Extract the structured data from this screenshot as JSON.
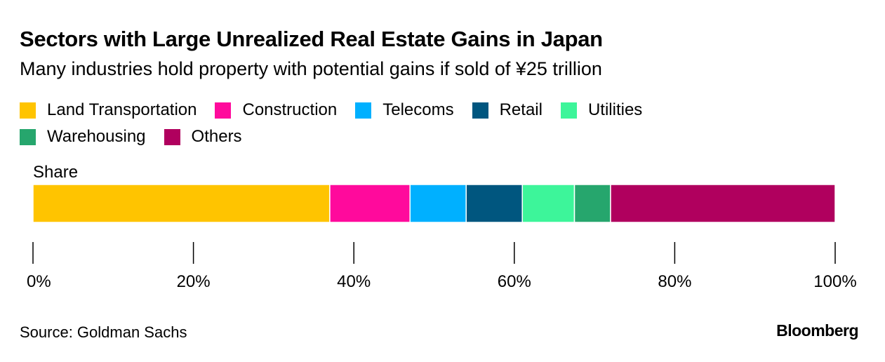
{
  "title": "Sectors with Large Unrealized Real Estate Gains in Japan",
  "subtitle": "Many industries hold property with potential gains if sold of ¥25 trillion",
  "source": "Source: Goldman Sachs",
  "brand": "Bloomberg",
  "chart_data": {
    "type": "bar",
    "orientation": "horizontal-stacked",
    "title": "Sectors with Large Unrealized Real Estate Gains in Japan",
    "subtitle": "Many industries hold property with potential gains if sold of ¥25 trillion",
    "categories": [
      "Share"
    ],
    "series": [
      {
        "name": "Land Transportation",
        "values": [
          37.0
        ],
        "color": "#ffc400"
      },
      {
        "name": "Construction",
        "values": [
          10.0
        ],
        "color": "#ff0a9c"
      },
      {
        "name": "Telecoms",
        "values": [
          7.0
        ],
        "color": "#00b0ff"
      },
      {
        "name": "Retail",
        "values": [
          7.0
        ],
        "color": "#00567f"
      },
      {
        "name": "Utilities",
        "values": [
          6.5
        ],
        "color": "#3df59a"
      },
      {
        "name": "Warehousing",
        "values": [
          4.5
        ],
        "color": "#26a66d"
      },
      {
        "name": "Others",
        "values": [
          28.0
        ],
        "color": "#b0005e"
      }
    ],
    "xlim": [
      0,
      100
    ],
    "ticks": [
      0,
      20,
      40,
      60,
      80,
      100
    ],
    "tick_labels": [
      "0%",
      "20%",
      "40%",
      "60%",
      "80%",
      "100%"
    ],
    "xlabel": "",
    "ylabel": "",
    "legend": "top",
    "grid": false
  }
}
